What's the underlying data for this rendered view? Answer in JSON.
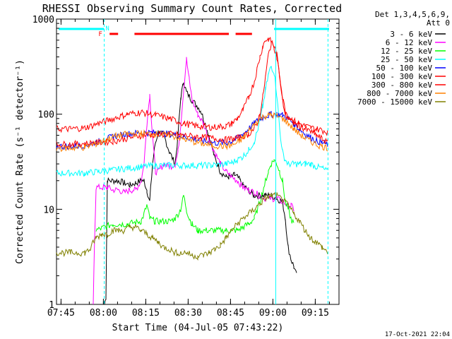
{
  "chart_data": {
    "type": "line",
    "title": "RHESSI Observing Summary Count Rates, Corrected",
    "xlabel": "Start Time (04-Jul-05 07:43:22)",
    "ylabel": "Corrected Count Rate (s⁻¹ detector⁻¹)",
    "yscale": "log",
    "ylim": [
      1,
      1000
    ],
    "xlim_minutes": [
      0,
      100
    ],
    "x_ticks": [
      {
        "t": 1.6,
        "label": "07:45"
      },
      {
        "t": 16.6,
        "label": "08:00"
      },
      {
        "t": 31.6,
        "label": "08:15"
      },
      {
        "t": 46.6,
        "label": "08:30"
      },
      {
        "t": 61.6,
        "label": "08:45"
      },
      {
        "t": 76.6,
        "label": "09:00"
      },
      {
        "t": 91.6,
        "label": "09:15"
      }
    ],
    "y_ticks": [
      {
        "v": 1,
        "label": "1"
      },
      {
        "v": 10,
        "label": "10"
      },
      {
        "v": 100,
        "label": "100"
      },
      {
        "v": 1000,
        "label": "1000"
      }
    ],
    "legend_header": [
      "Det 1,3,4,5,6,9,",
      "Att 0"
    ],
    "legend_position": "right",
    "grid": false,
    "series": [
      {
        "name": "3 - 6 keV",
        "color": "#000000",
        "x": [
          0,
          17,
          17.5,
          18,
          22,
          24,
          26,
          28,
          30,
          31,
          32,
          33,
          34,
          35,
          36,
          38,
          40,
          42,
          43,
          44,
          45,
          46,
          48,
          50,
          51,
          52,
          54,
          56,
          57,
          58,
          60,
          61,
          62,
          63,
          64,
          65,
          66,
          67,
          68,
          69,
          70,
          72,
          74,
          76,
          78,
          80,
          81,
          82,
          83,
          84,
          85
        ],
        "y": [
          null,
          1,
          1.2,
          20,
          20,
          19,
          18,
          19,
          20,
          20,
          16,
          12,
          30,
          50,
          65,
          60,
          40,
          30,
          60,
          150,
          220,
          170,
          140,
          120,
          110,
          90,
          60,
          35,
          30,
          25,
          22,
          22,
          22,
          23,
          22,
          20,
          18,
          17,
          16,
          15,
          14,
          14,
          14,
          14,
          13,
          12,
          8,
          4,
          3,
          2.5,
          2
        ]
      },
      {
        "name": "6 - 12 keV",
        "color": "#ff00ff",
        "x": [
          13,
          13.5,
          14,
          17,
          18,
          20,
          22,
          24,
          26,
          28,
          30,
          31,
          32,
          33,
          34,
          35,
          36,
          38,
          40,
          42,
          43,
          44,
          45,
          46,
          47,
          48,
          50,
          52,
          54,
          56,
          58,
          60,
          62,
          64,
          66,
          68,
          70,
          72,
          74,
          76,
          78,
          80,
          82,
          83,
          84
        ],
        "y": [
          1,
          5,
          17,
          17,
          17,
          16,
          16,
          15,
          16,
          16,
          20,
          30,
          80,
          160,
          60,
          25,
          25,
          30,
          28,
          30,
          40,
          80,
          180,
          380,
          230,
          140,
          100,
          80,
          55,
          40,
          30,
          25,
          22,
          20,
          17,
          16,
          15,
          14,
          13,
          13,
          13,
          12,
          11,
          11,
          10
        ]
      },
      {
        "name": "12 - 25 keV",
        "color": "#00ff00",
        "x": [
          13,
          14,
          17,
          20,
          25,
          30,
          31,
          32,
          33,
          35,
          40,
          42,
          44,
          45,
          46,
          47,
          48,
          50,
          55,
          60,
          62,
          64,
          66,
          68,
          70,
          72,
          74,
          75,
          76,
          77,
          78,
          79,
          80,
          81,
          82,
          83,
          84
        ],
        "y": [
          null,
          6,
          6.5,
          7,
          7,
          7.5,
          9,
          11,
          8,
          7.5,
          7.5,
          8,
          10,
          14,
          10,
          8,
          7,
          6,
          6,
          6,
          6,
          6,
          6.5,
          7,
          8,
          12,
          20,
          25,
          30,
          33,
          30,
          25,
          20,
          12,
          10,
          8,
          7
        ]
      },
      {
        "name": "25 - 50 keV",
        "color": "#00ffff",
        "x": [
          0,
          10,
          15,
          20,
          25,
          30,
          35,
          40,
          45,
          50,
          55,
          60,
          62,
          64,
          66,
          68,
          70,
          71,
          72,
          73,
          74,
          75,
          76,
          77,
          78,
          79,
          80,
          81,
          82,
          84,
          86,
          88,
          90,
          92,
          94,
          96
        ],
        "y": [
          24,
          24,
          25,
          26,
          27,
          28,
          29,
          29,
          29,
          29,
          29,
          30,
          31,
          33,
          36,
          42,
          52,
          65,
          85,
          120,
          180,
          260,
          320,
          280,
          160,
          70,
          40,
          33,
          30,
          30,
          30,
          30,
          30,
          28,
          27,
          25
        ]
      },
      {
        "name": "50 - 100 keV",
        "color": "#0000ff",
        "x": [
          0,
          5,
          10,
          15,
          20,
          25,
          30,
          35,
          40,
          45,
          50,
          55,
          60,
          62,
          64,
          66,
          68,
          70,
          72,
          74,
          76,
          78,
          80,
          82,
          84,
          86,
          88,
          90,
          92,
          94,
          96
        ],
        "y": [
          46,
          46,
          47,
          52,
          58,
          62,
          64,
          64,
          62,
          58,
          54,
          50,
          50,
          52,
          56,
          62,
          70,
          80,
          90,
          95,
          100,
          100,
          98,
          90,
          80,
          70,
          62,
          57,
          53,
          50,
          48
        ]
      },
      {
        "name": "100 - 300 keV",
        "color": "#ff0000",
        "x": [
          0,
          5,
          10,
          15,
          20,
          25,
          30,
          35,
          40,
          45,
          50,
          55,
          60,
          62,
          64,
          66,
          68,
          70,
          71,
          72,
          73,
          74,
          75,
          76,
          77,
          78,
          79,
          80,
          81,
          82,
          84,
          86,
          88,
          90,
          92,
          94,
          96
        ],
        "y": [
          70,
          70,
          72,
          80,
          90,
          100,
          105,
          98,
          90,
          80,
          75,
          73,
          75,
          80,
          90,
          110,
          150,
          220,
          300,
          400,
          520,
          600,
          620,
          580,
          520,
          420,
          250,
          150,
          110,
          95,
          85,
          80,
          75,
          72,
          70,
          68,
          65
        ]
      },
      {
        "name": "300 - 800 keV",
        "color": "#ff0000",
        "x": [
          0,
          10,
          20,
          30,
          40,
          50,
          60,
          64,
          68,
          70,
          71,
          72,
          73,
          74,
          75,
          76,
          77,
          78,
          79,
          80,
          81,
          82,
          84,
          86,
          88,
          90,
          92,
          94,
          96
        ],
        "y": [
          48,
          49,
          52,
          60,
          62,
          58,
          54,
          56,
          62,
          70,
          80,
          100,
          150,
          250,
          420,
          560,
          520,
          400,
          250,
          140,
          100,
          90,
          80,
          75,
          70,
          65,
          60,
          55,
          50
        ]
      },
      {
        "name": "800 - 7000 keV",
        "color": "#ff8000",
        "x": [
          0,
          5,
          10,
          15,
          20,
          25,
          30,
          35,
          40,
          45,
          50,
          55,
          60,
          62,
          64,
          66,
          68,
          70,
          72,
          74,
          76,
          78,
          80,
          82,
          84,
          86,
          88,
          90,
          92,
          94,
          96
        ],
        "y": [
          44,
          44,
          45,
          50,
          58,
          62,
          63,
          62,
          60,
          55,
          50,
          47,
          46,
          47,
          50,
          56,
          66,
          78,
          90,
          96,
          98,
          96,
          90,
          80,
          70,
          62,
          56,
          52,
          48,
          46,
          44
        ]
      },
      {
        "name": "7000 - 15000 keV",
        "color": "#808000",
        "x": [
          0,
          5,
          10,
          12,
          13,
          14,
          16,
          18,
          20,
          22,
          24,
          26,
          28,
          30,
          32,
          34,
          36,
          38,
          40,
          42,
          44,
          46,
          48,
          50,
          52,
          54,
          56,
          58,
          60,
          62,
          64,
          66,
          68,
          70,
          72,
          74,
          76,
          78,
          80,
          82,
          84,
          86,
          88,
          90,
          92,
          94,
          96
        ],
        "y": [
          3.5,
          3.5,
          3.5,
          3.8,
          4.5,
          5,
          5.5,
          5.5,
          6,
          6,
          6,
          6.5,
          6.5,
          6,
          5.5,
          5,
          4.5,
          4,
          3.8,
          3.5,
          3.5,
          3.5,
          3.3,
          3.2,
          3.3,
          3.5,
          3.8,
          4.2,
          5,
          6,
          7,
          8,
          9,
          10,
          11.5,
          13,
          14,
          14,
          12.5,
          11,
          9,
          7.5,
          6,
          5,
          4.5,
          4,
          3.5
        ]
      }
    ],
    "annotations": [
      {
        "text": "F",
        "color": "#ff0000"
      },
      {
        "text": "N",
        "color": "#00ffff"
      }
    ],
    "footer_date": "17-Oct-2021 22:04"
  }
}
